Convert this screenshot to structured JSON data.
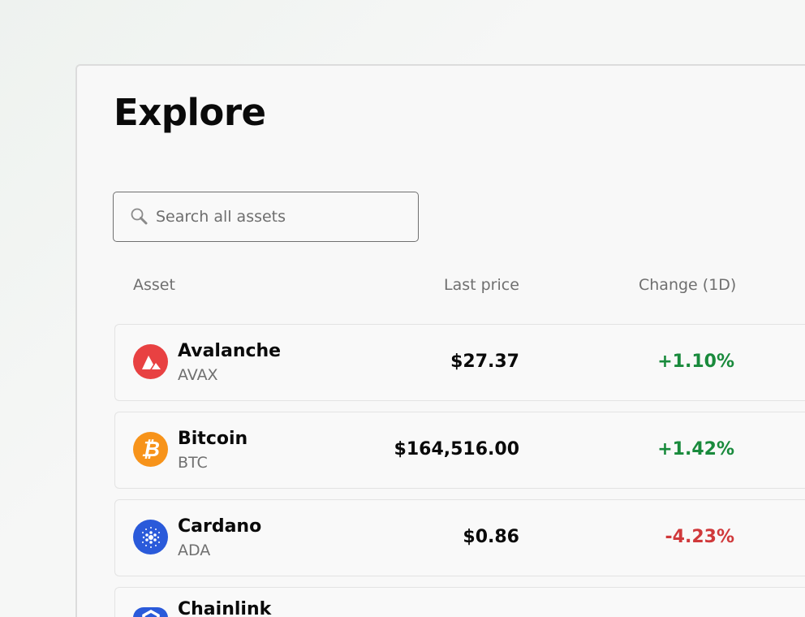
{
  "page": {
    "title": "Explore"
  },
  "search": {
    "placeholder": "Search all assets",
    "value": ""
  },
  "table": {
    "columns": [
      "Asset",
      "Last price",
      "Change (1D)"
    ],
    "rows": [
      {
        "name": "Avalanche",
        "symbol": "AVAX",
        "price": "$27.37",
        "change": "+1.10%",
        "direction": "up",
        "icon": "avalanche-icon",
        "color": "#e84142"
      },
      {
        "name": "Bitcoin",
        "symbol": "BTC",
        "price": "$164,516.00",
        "change": "+1.42%",
        "direction": "up",
        "icon": "bitcoin-icon",
        "color": "#f7931a"
      },
      {
        "name": "Cardano",
        "symbol": "ADA",
        "price": "$0.86",
        "change": "-4.23%",
        "direction": "down",
        "icon": "cardano-icon",
        "color": "#2a5ada"
      },
      {
        "name": "Chainlink",
        "icon": "chainlink-icon",
        "color": "#2a5ada"
      }
    ]
  },
  "colors": {
    "positive": "#198a3c",
    "negative": "#d0393b"
  }
}
